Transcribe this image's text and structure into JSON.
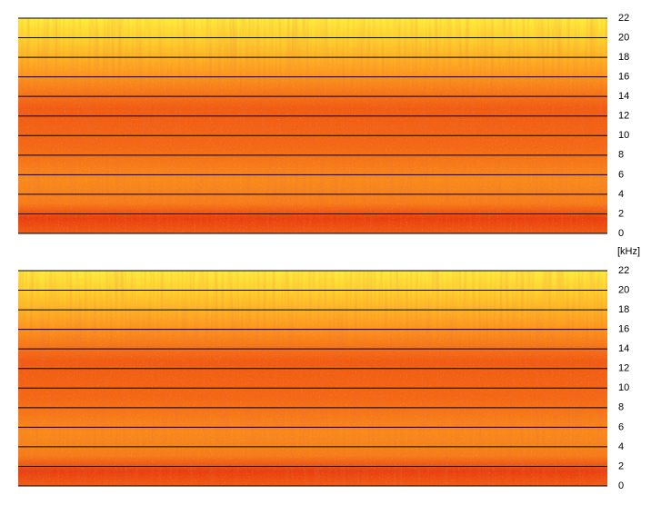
{
  "chart_data": [
    {
      "type": "spectrogram",
      "ylim": [
        0,
        22
      ],
      "yticks": [
        0,
        2,
        4,
        6,
        8,
        10,
        12,
        14,
        16,
        18,
        20,
        22
      ],
      "grid": true
    },
    {
      "type": "spectrogram",
      "ylabel": "[kHz]",
      "ylim": [
        0,
        22
      ],
      "yticks": [
        0,
        2,
        4,
        6,
        8,
        10,
        12,
        14,
        16,
        18,
        20,
        22
      ],
      "grid": true
    }
  ]
}
